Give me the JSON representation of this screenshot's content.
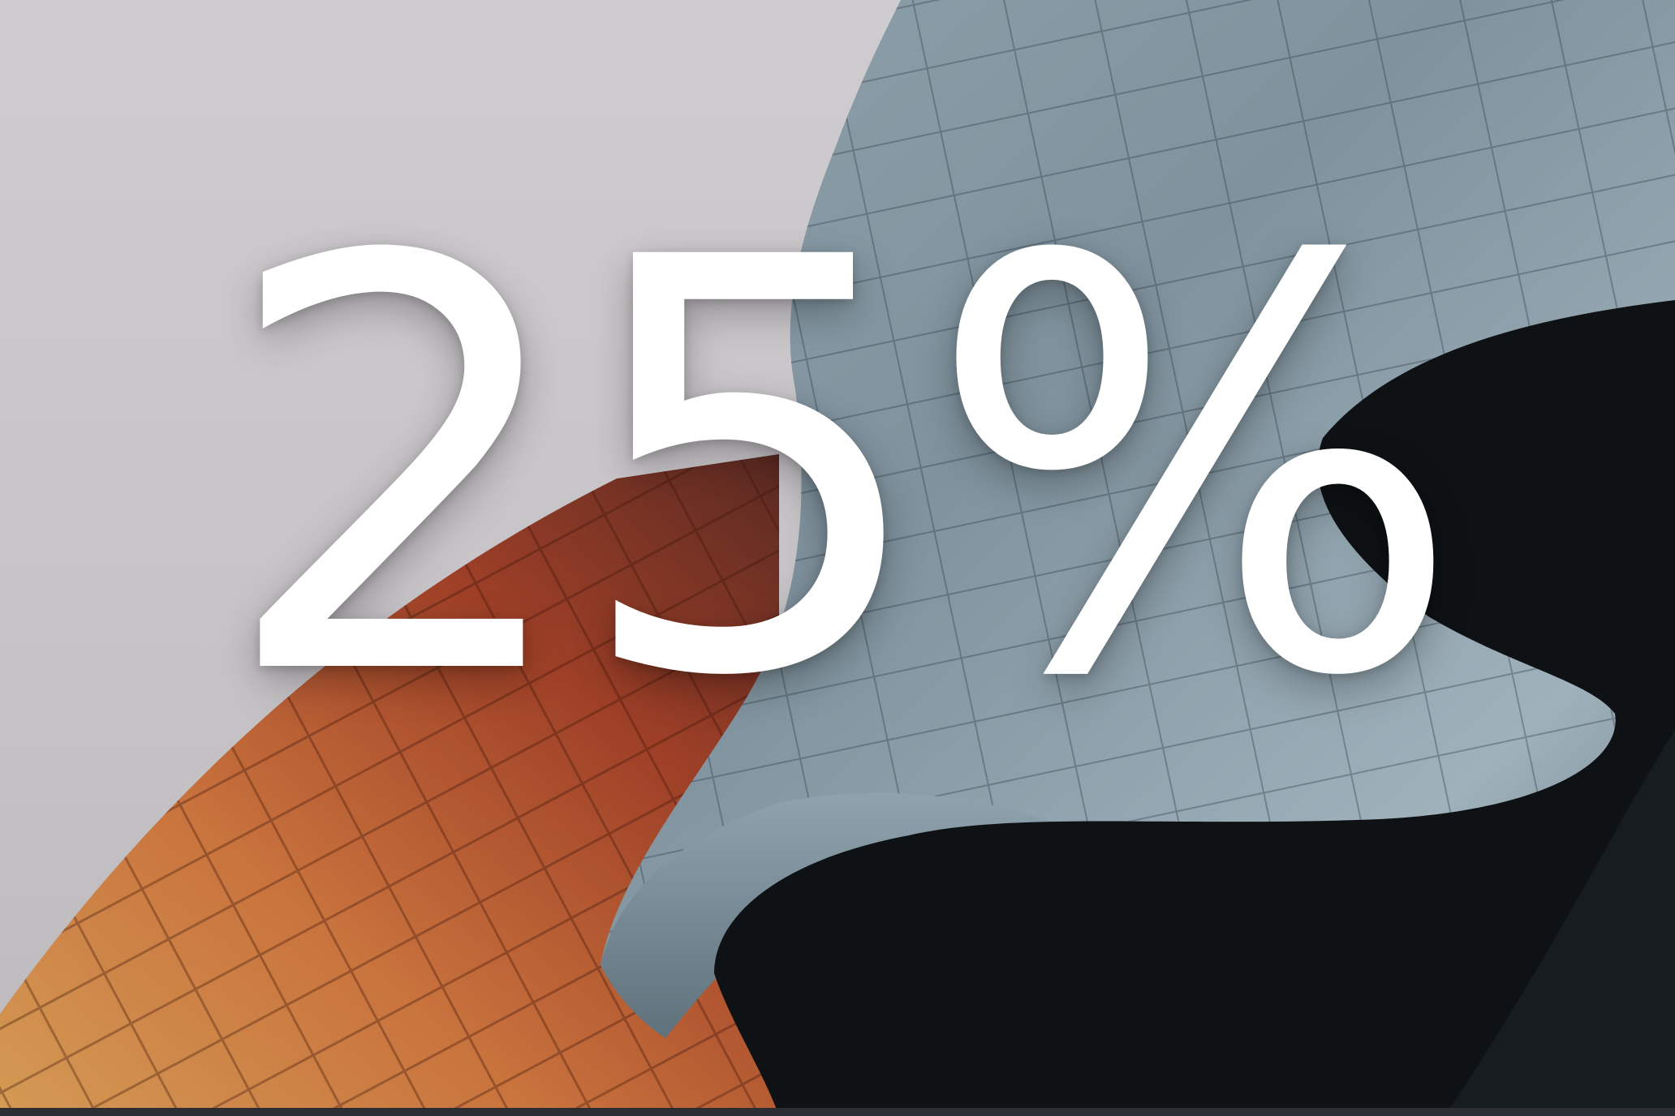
{
  "headline": {
    "text": "25%",
    "color": "#ffffff"
  },
  "scene": {
    "sky_color": "#c9c7c9",
    "copper_panel_color": "#b8572f",
    "steel_panel_color": "#8fa3ae",
    "shadow_color": "#0e1214"
  }
}
